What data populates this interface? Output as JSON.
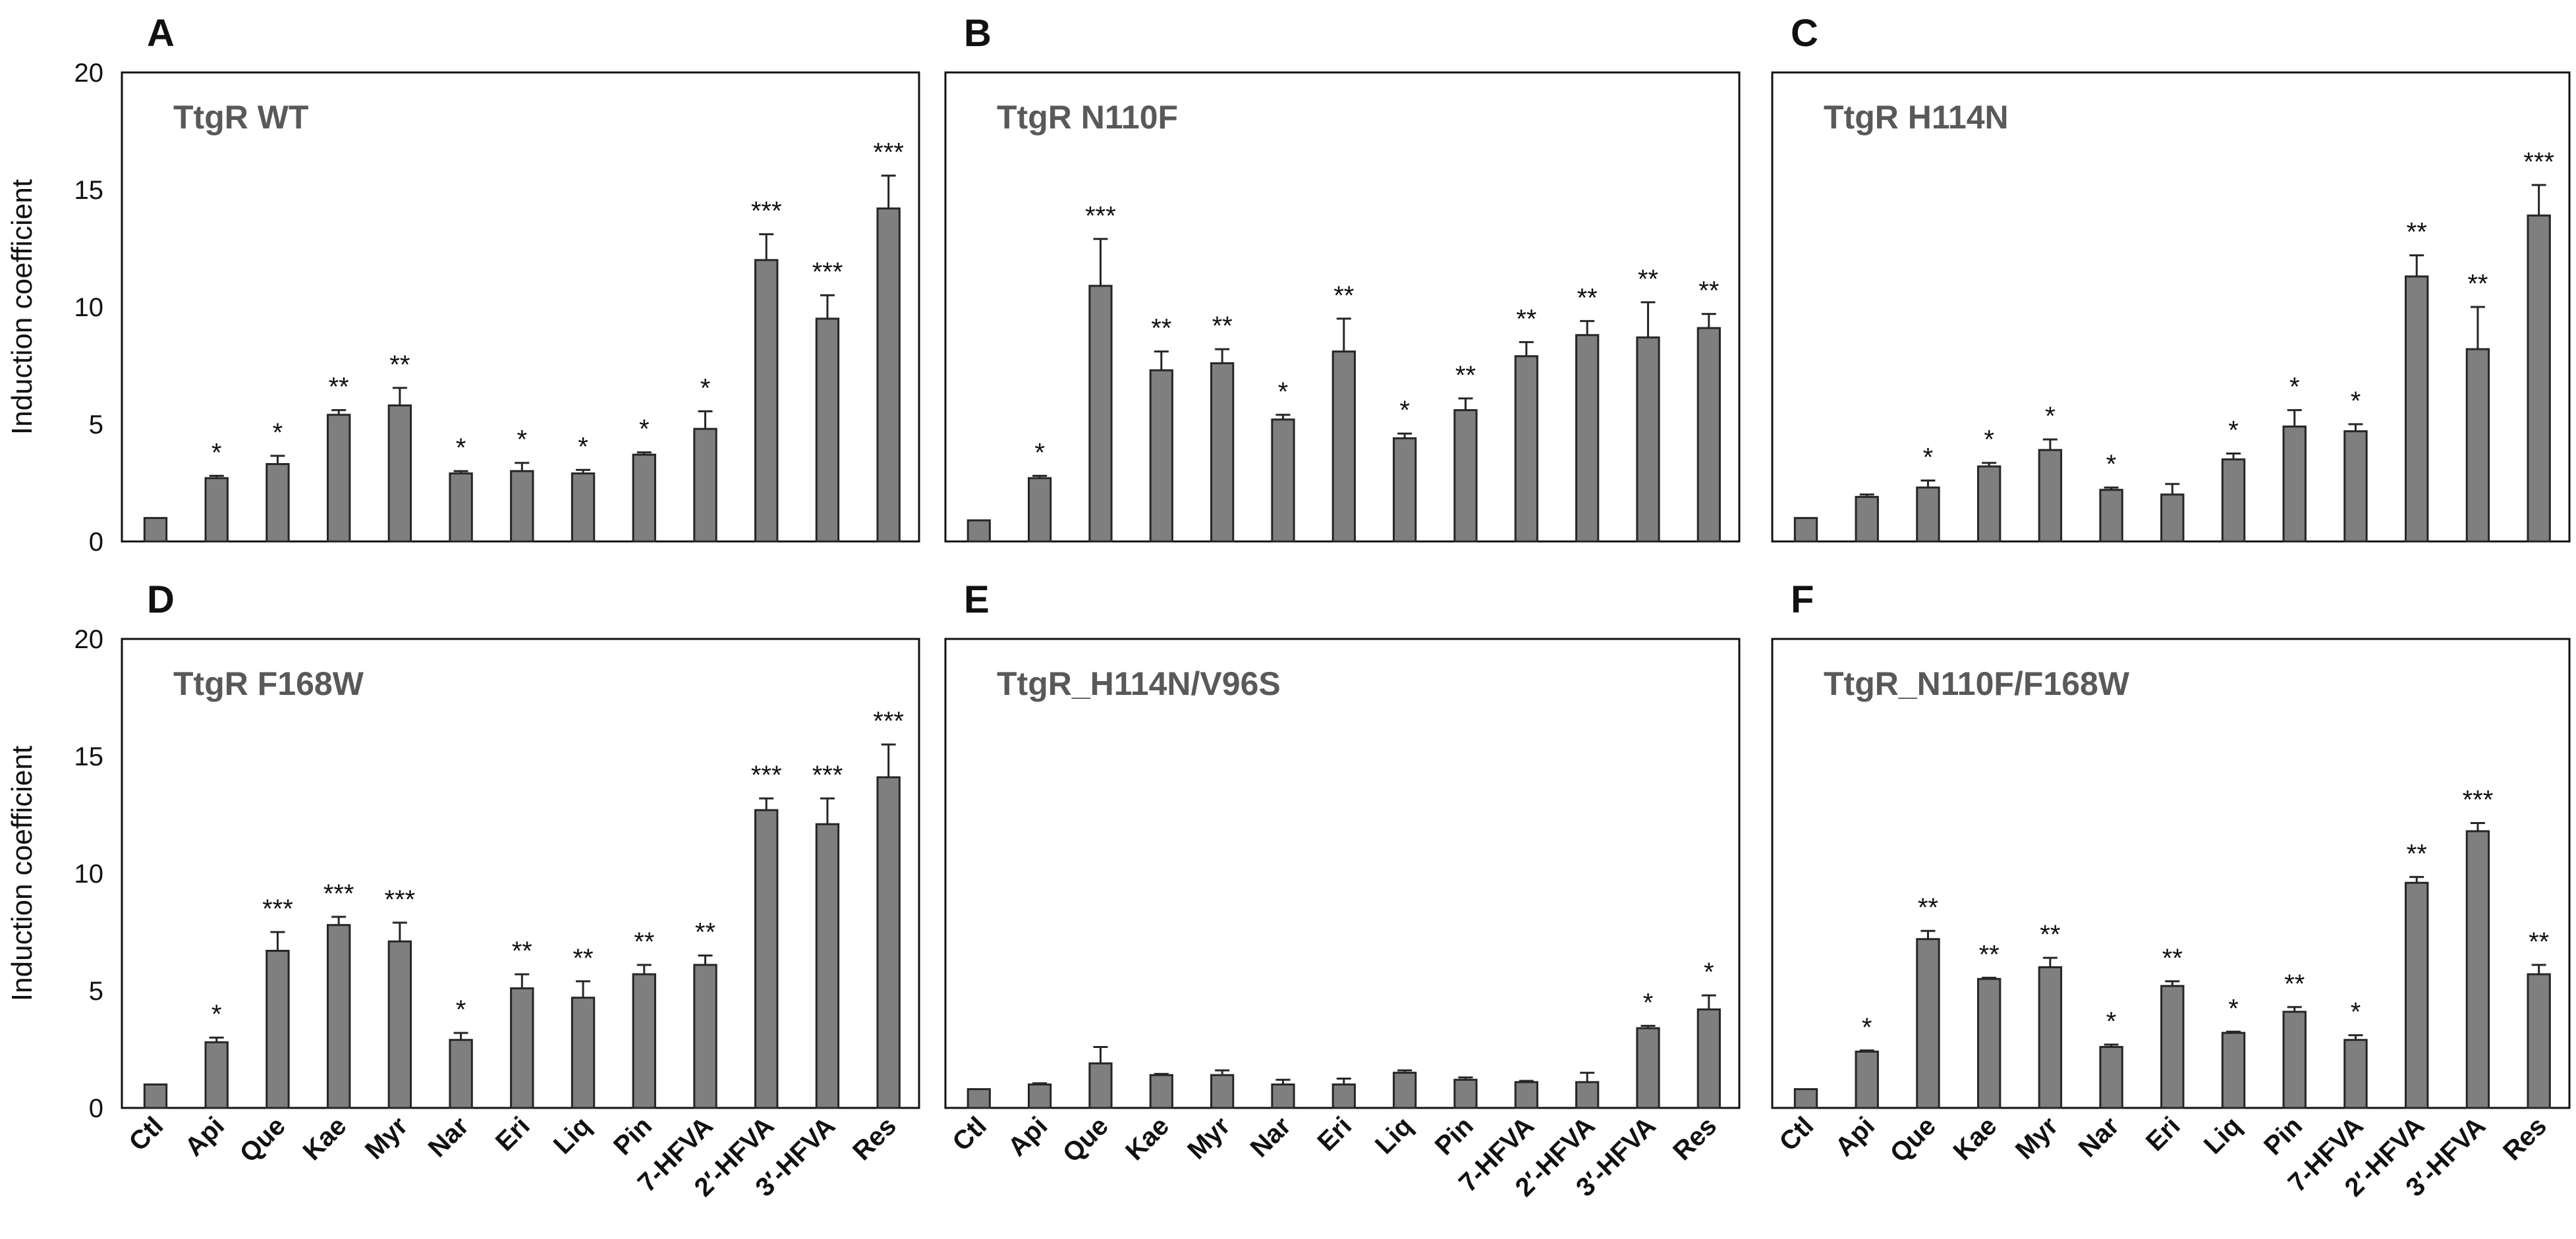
{
  "chart_data": [
    {
      "type": "bar",
      "panel": "A",
      "title": "TtgR WT",
      "ylabel": "Induction coefficient",
      "ylim": [
        0,
        20
      ],
      "yticks": [
        0,
        5,
        10,
        15,
        20
      ],
      "categories": [
        "Ctl",
        "Api",
        "Que",
        "Kae",
        "Myr",
        "Nar",
        "Eri",
        "Liq",
        "Pin",
        "7-HFVA",
        "2′-HFVA",
        "3′-HFVA",
        "Res"
      ],
      "values": [
        1.0,
        2.7,
        3.3,
        5.4,
        5.8,
        2.9,
        3.0,
        2.9,
        3.7,
        4.8,
        12.0,
        9.5,
        14.2
      ],
      "errors": [
        0,
        0.1,
        0.35,
        0.2,
        0.75,
        0.1,
        0.35,
        0.15,
        0.1,
        0.75,
        1.1,
        1.0,
        1.4
      ],
      "significance": [
        "",
        "*",
        "*",
        "**",
        "**",
        "*",
        "*",
        "*",
        "*",
        "*",
        "***",
        "***",
        "***"
      ]
    },
    {
      "type": "bar",
      "panel": "B",
      "title": "TtgR N110F",
      "ylabel": "",
      "ylim": [
        0,
        20
      ],
      "yticks": [
        0,
        5,
        10,
        15,
        20
      ],
      "categories": [
        "Ctl",
        "Api",
        "Que",
        "Kae",
        "Myr",
        "Nar",
        "Eri",
        "Liq",
        "Pin",
        "7-HFVA",
        "2′-HFVA",
        "3′-HFVA",
        "Res"
      ],
      "values": [
        0.9,
        2.7,
        10.9,
        7.3,
        7.6,
        5.2,
        8.1,
        4.4,
        5.6,
        7.9,
        8.8,
        8.7,
        9.1
      ],
      "errors": [
        0,
        0.1,
        2.0,
        0.8,
        0.6,
        0.2,
        1.4,
        0.2,
        0.5,
        0.6,
        0.6,
        1.5,
        0.6
      ],
      "significance": [
        "",
        "*",
        "***",
        "**",
        "**",
        "*",
        "**",
        "*",
        "**",
        "**",
        "**",
        "**",
        "**"
      ]
    },
    {
      "type": "bar",
      "panel": "C",
      "title": "TtgR H114N",
      "ylabel": "",
      "ylim": [
        0,
        20
      ],
      "yticks": [
        0,
        5,
        10,
        15,
        20
      ],
      "categories": [
        "Ctl",
        "Api",
        "Que",
        "Kae",
        "Myr",
        "Nar",
        "Eri",
        "Liq",
        "Pin",
        "7-HFVA",
        "2′-HFVA",
        "3′-HFVA",
        "Res"
      ],
      "values": [
        1.0,
        1.9,
        2.3,
        3.2,
        3.9,
        2.2,
        2.0,
        3.5,
        4.9,
        4.7,
        11.3,
        8.2,
        13.9
      ],
      "errors": [
        0,
        0.1,
        0.3,
        0.15,
        0.45,
        0.1,
        0.45,
        0.25,
        0.7,
        0.3,
        0.9,
        1.8,
        1.3
      ],
      "significance": [
        "",
        "",
        "*",
        "*",
        "*",
        "*",
        "",
        "*",
        "*",
        "*",
        "**",
        "**",
        "***"
      ]
    },
    {
      "type": "bar",
      "panel": "D",
      "title": "TtgR F168W",
      "ylabel": "Induction coefficient",
      "ylim": [
        0,
        20
      ],
      "yticks": [
        0,
        5,
        10,
        15,
        20
      ],
      "categories": [
        "Ctl",
        "Api",
        "Que",
        "Kae",
        "Myr",
        "Nar",
        "Eri",
        "Liq",
        "Pin",
        "7-HFVA",
        "2′-HFVA",
        "3′-HFVA",
        "Res"
      ],
      "values": [
        1.0,
        2.8,
        6.7,
        7.8,
        7.1,
        2.9,
        5.1,
        4.7,
        5.7,
        6.1,
        12.7,
        12.1,
        14.1
      ],
      "errors": [
        0,
        0.2,
        0.8,
        0.35,
        0.8,
        0.3,
        0.6,
        0.7,
        0.4,
        0.4,
        0.5,
        1.1,
        1.4
      ],
      "significance": [
        "",
        "*",
        "***",
        "***",
        "***",
        "*",
        "**",
        "**",
        "**",
        "**",
        "***",
        "***",
        "***"
      ]
    },
    {
      "type": "bar",
      "panel": "E",
      "title": "TtgR_H114N/V96S",
      "ylabel": "",
      "ylim": [
        0,
        20
      ],
      "yticks": [
        0,
        5,
        10,
        15,
        20
      ],
      "categories": [
        "Ctl",
        "Api",
        "Que",
        "Kae",
        "Myr",
        "Nar",
        "Eri",
        "Liq",
        "Pin",
        "7-HFVA",
        "2′-HFVA",
        "3′-HFVA",
        "Res"
      ],
      "values": [
        0.8,
        1.0,
        1.9,
        1.4,
        1.4,
        1.0,
        1.0,
        1.5,
        1.2,
        1.1,
        1.1,
        3.4,
        4.2
      ],
      "errors": [
        0,
        0.05,
        0.7,
        0.05,
        0.2,
        0.2,
        0.25,
        0.1,
        0.1,
        0.05,
        0.4,
        0.1,
        0.6
      ],
      "significance": [
        "",
        "",
        "",
        "",
        "",
        "",
        "",
        "",
        "",
        "",
        "",
        "*",
        "*"
      ]
    },
    {
      "type": "bar",
      "panel": "F",
      "title": "TtgR_N110F/F168W",
      "ylabel": "",
      "ylim": [
        0,
        20
      ],
      "yticks": [
        0,
        5,
        10,
        15,
        20
      ],
      "categories": [
        "Ctl",
        "Api",
        "Que",
        "Kae",
        "Myr",
        "Nar",
        "Eri",
        "Liq",
        "Pin",
        "7-HFVA",
        "2′-HFVA",
        "3′-HFVA",
        "Res"
      ],
      "values": [
        0.8,
        2.4,
        7.2,
        5.5,
        6.0,
        2.6,
        5.2,
        3.2,
        4.1,
        2.9,
        9.6,
        11.8,
        5.7
      ],
      "errors": [
        0,
        0.05,
        0.35,
        0.05,
        0.4,
        0.1,
        0.2,
        0.05,
        0.2,
        0.2,
        0.25,
        0.35,
        0.4
      ],
      "significance": [
        "",
        "*",
        "**",
        "**",
        "**",
        "*",
        "**",
        "*",
        "**",
        "*",
        "**",
        "***",
        "**"
      ]
    }
  ],
  "colors": {
    "bar_fill": "#7f7f7f",
    "bar_stroke": "#262626",
    "frame": "#111111",
    "title": "#595959"
  }
}
